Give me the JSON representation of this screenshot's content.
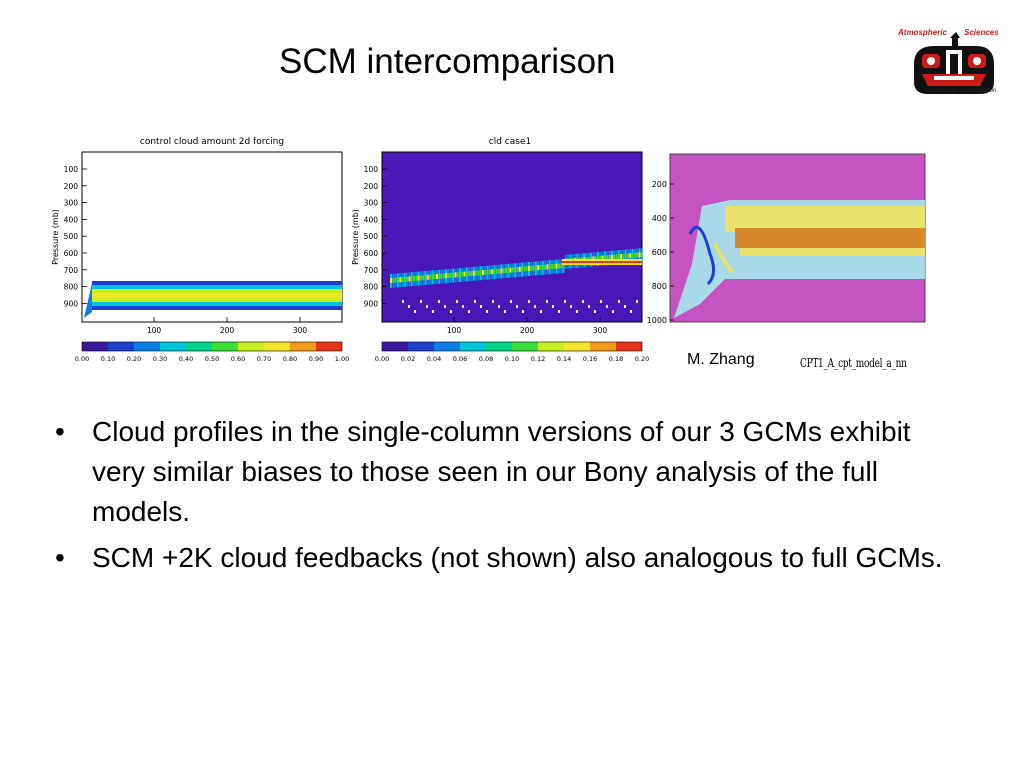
{
  "slide": {
    "title": "SCM intercomparison",
    "credit": "M. Zhang",
    "figure_filename": "CPT1_A_cpt_model_a_nn",
    "bullets": [
      "Cloud profiles in the single-column versions of our 3 GCMs exhibit very similar biases to those seen in our Bony analysis of the full models.",
      "SCM +2K cloud feedbacks (not shown) also analogous to full GCMs."
    ],
    "bullet_marker": "•"
  },
  "logo": {
    "left_text": "Atmospheric",
    "right_text": "Sciences",
    "bottom_text": "University of Washington",
    "colors": {
      "red": "#cc1b1b",
      "black": "#111111"
    }
  },
  "chart_data": [
    {
      "type": "heatmap",
      "title": "control cloud amount 2d forcing",
      "ylabel": "Pressure (mb)",
      "xlabel": "",
      "y_ticks": [
        "100",
        "200",
        "300",
        "400",
        "500",
        "600",
        "700",
        "800",
        "900"
      ],
      "x_ticks": [
        "100",
        "200",
        "300"
      ],
      "colorbar_ticks": [
        "0.00",
        "0.10",
        "0.20",
        "0.30",
        "0.40",
        "0.50",
        "0.60",
        "0.70",
        "0.80",
        "0.90",
        "1.00"
      ],
      "colorbar_colors": [
        "#3a1a9e",
        "#1c3ed1",
        "#0a7fe6",
        "#00c4d8",
        "#00d38c",
        "#3adf3a",
        "#c8ef1e",
        "#f5e62b",
        "#f59b1a",
        "#e8331c"
      ],
      "background": "#ffffff"
    },
    {
      "type": "heatmap",
      "title": "cld case1",
      "ylabel": "Pressure (mb)",
      "xlabel": "",
      "y_ticks": [
        "100",
        "200",
        "300",
        "400",
        "500",
        "600",
        "700",
        "800",
        "900"
      ],
      "x_ticks": [
        "100",
        "200",
        "300"
      ],
      "colorbar_ticks": [
        "0.00",
        "0.02",
        "0.04",
        "0.06",
        "0.08",
        "0.10",
        "0.12",
        "0.14",
        "0.16",
        "0.18",
        "0.20"
      ],
      "colorbar_colors": [
        "#3a1a9e",
        "#1c3ed1",
        "#0a7fe6",
        "#00c4d8",
        "#00d38c",
        "#3adf3a",
        "#c8ef1e",
        "#f5e62b",
        "#f59b1a",
        "#e8331c"
      ],
      "background": "#4a18b8"
    },
    {
      "type": "heatmap",
      "title": "",
      "y_ticks": [
        "200",
        "400",
        "600",
        "800",
        "1000"
      ],
      "colors": {
        "background": "#c553c2",
        "yellow": "#e8e26a",
        "orange": "#d9892c",
        "lightblue": "#a9d9e8"
      }
    }
  ]
}
